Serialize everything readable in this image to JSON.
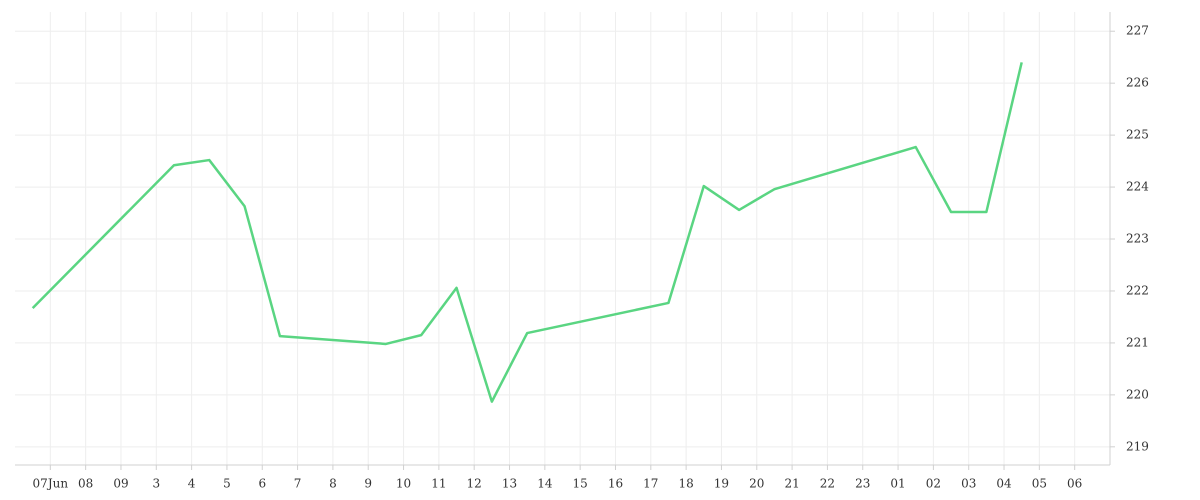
{
  "chart_data": {
    "type": "line",
    "xlim": [
      -1,
      30
    ],
    "xticks": [
      {
        "value": 0,
        "label": "07Jun"
      },
      {
        "value": 1,
        "label": "08"
      },
      {
        "value": 2,
        "label": "09"
      },
      3,
      4,
      5,
      6,
      7,
      8,
      9,
      10,
      11,
      12,
      13,
      14,
      15,
      16,
      17,
      18,
      19,
      20,
      21,
      22,
      23,
      {
        "value": 24,
        "label": "01"
      },
      {
        "value": 25,
        "label": "02"
      },
      {
        "value": 26,
        "label": "03"
      },
      {
        "value": 27,
        "label": "04"
      },
      {
        "value": 28,
        "label": "05"
      },
      {
        "value": 29,
        "label": "06"
      }
    ],
    "ylim": [
      218.65,
      227.37
    ],
    "yticks": [
      219,
      220,
      221,
      222,
      223,
      224,
      225,
      226,
      227
    ],
    "grid": true,
    "x": [
      -0.5,
      3.5,
      4.5,
      5.5,
      6.5,
      9.5,
      10.5,
      11.5,
      12.5,
      13.5,
      17.5,
      18.5,
      19.5,
      20.5,
      24.5,
      25.5,
      26.5,
      27.5
    ],
    "series": [
      {
        "color": "#5ad582",
        "values": [
          221.67,
          224.42,
          224.52,
          223.63,
          221.13,
          220.98,
          221.15,
          222.06,
          219.87,
          221.19,
          221.77,
          224.02,
          223.56,
          223.96,
          224.77,
          223.52,
          223.52,
          226.4
        ]
      }
    ]
  }
}
